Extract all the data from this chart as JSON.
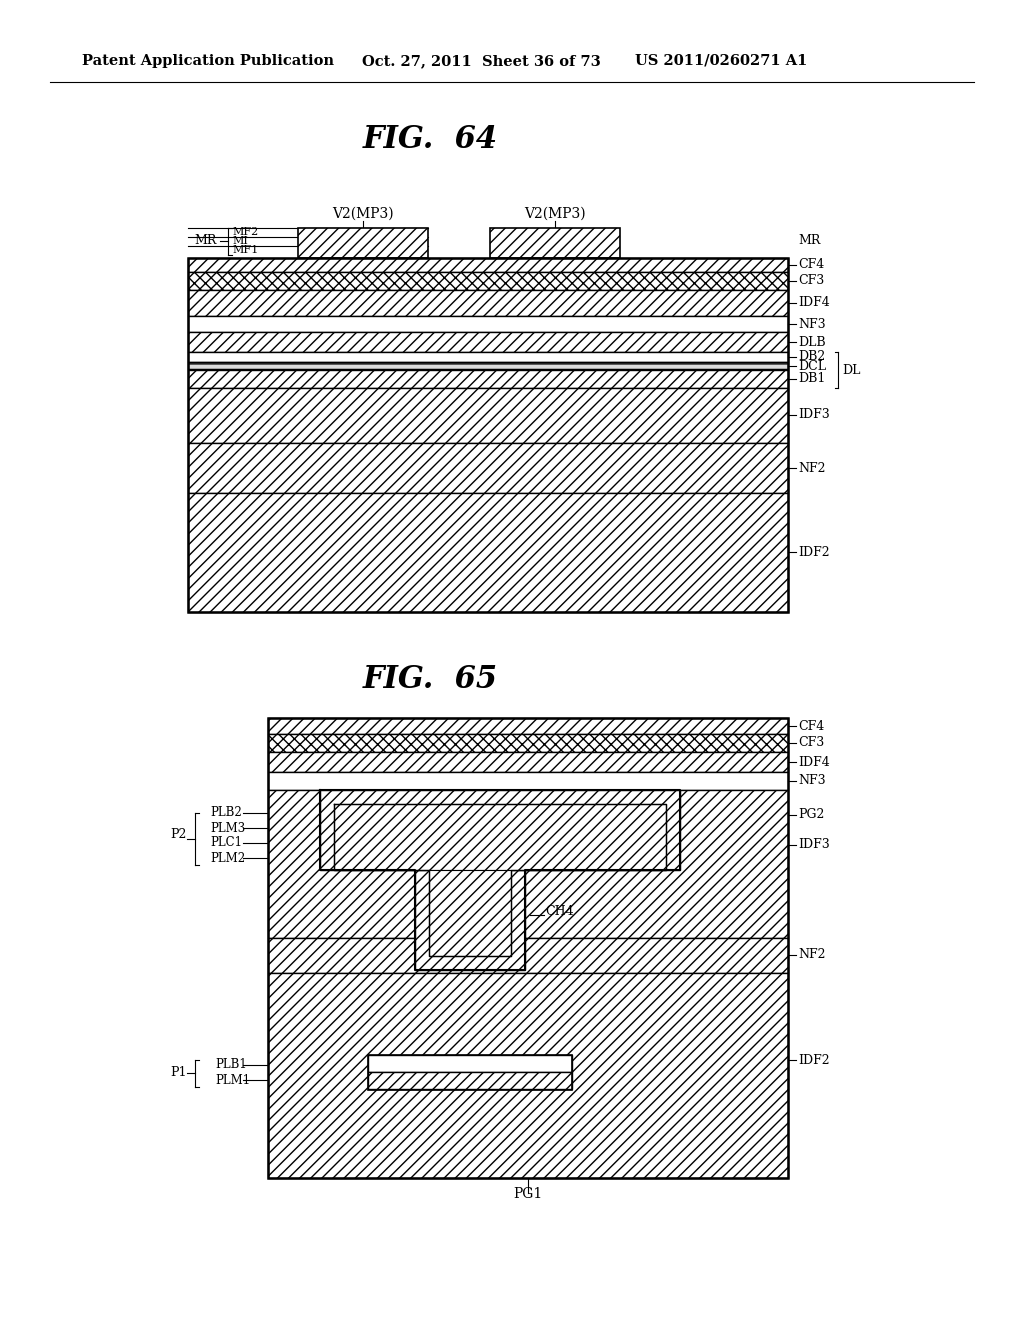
{
  "bg_color": "#ffffff",
  "header_left": "Patent Application Publication",
  "header_mid": "Oct. 27, 2011  Sheet 36 of 73",
  "header_right": "US 2011/0260271 A1",
  "fig64_title": "FIG.  64",
  "fig65_title": "FIG.  65",
  "line_color": "#000000"
}
